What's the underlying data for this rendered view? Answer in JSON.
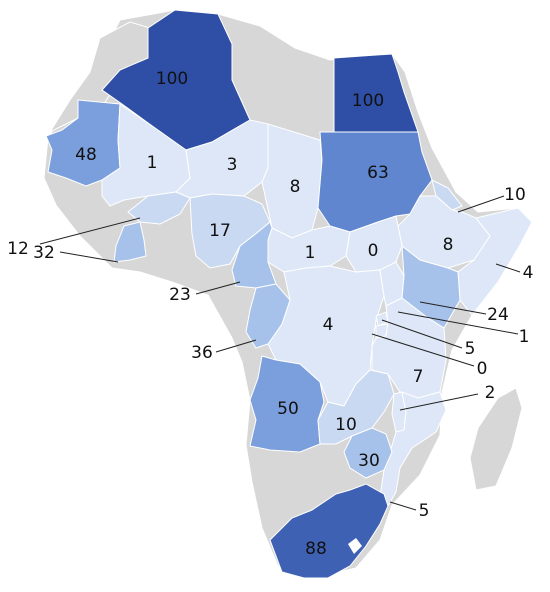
{
  "palette": {
    "no_data": "#d7d7d7",
    "v1": "#dde7f7",
    "v2": "#c9d9f2",
    "v3": "#a7c2ea",
    "v4": "#7b9fdc",
    "v5": "#5f86cf",
    "v6": "#3f61b3",
    "v7": "#2f4fa6"
  },
  "regions": [
    {
      "id": "algeria",
      "value": "100"
    },
    {
      "id": "egypt",
      "value": "100"
    },
    {
      "id": "mauritania",
      "value": "48"
    },
    {
      "id": "mali",
      "value": "1"
    },
    {
      "id": "niger",
      "value": "3"
    },
    {
      "id": "chad",
      "value": "8"
    },
    {
      "id": "sudan",
      "value": "63"
    },
    {
      "id": "eritrea",
      "value": "10"
    },
    {
      "id": "ethiopia",
      "value": "8"
    },
    {
      "id": "somalia",
      "value": "4"
    },
    {
      "id": "nigeria",
      "value": "17"
    },
    {
      "id": "car",
      "value": "1"
    },
    {
      "id": "south-sudan",
      "value": "0"
    },
    {
      "id": "kenya",
      "value": "24"
    },
    {
      "id": "uganda",
      "value": "1"
    },
    {
      "id": "rwanda",
      "value": "5"
    },
    {
      "id": "burundi",
      "value": "0"
    },
    {
      "id": "tanzania",
      "value": "7"
    },
    {
      "id": "malawi",
      "value": "2"
    },
    {
      "id": "mozambique",
      "value": "5"
    },
    {
      "id": "drc",
      "value": "4"
    },
    {
      "id": "burkina-faso",
      "value": "12"
    },
    {
      "id": "cote-divoire",
      "value": "32"
    },
    {
      "id": "cameroon",
      "value": "23"
    },
    {
      "id": "gabon",
      "value": "36"
    },
    {
      "id": "angola",
      "value": "50"
    },
    {
      "id": "zambia",
      "value": "10"
    },
    {
      "id": "zimbabwe",
      "value": "30"
    },
    {
      "id": "south-africa",
      "value": "88"
    }
  ]
}
